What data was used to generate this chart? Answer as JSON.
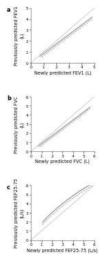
{
  "panels": [
    {
      "label": "a",
      "xlabel": "Newly predicted FEV1 (L)",
      "ylabel": "Previously predicted FEV1\n(L)",
      "xlim": [
        0,
        5
      ],
      "ylim": [
        0,
        5
      ],
      "xticks": [
        0,
        1,
        2,
        3,
        4,
        5
      ],
      "yticks": [
        0,
        1,
        2,
        3,
        4,
        5
      ],
      "curve_type": "linear",
      "lines": [
        {
          "x_start": 0.7,
          "x_end": 4.85,
          "slope": 0.87,
          "intercept": -0.04,
          "style": "solid",
          "color": "#888888",
          "lw": 0.7
        },
        {
          "x_start": 0.85,
          "x_end": 4.85,
          "slope": 0.87,
          "intercept": -0.22,
          "style": "dashed",
          "color": "#888888",
          "lw": 0.55
        },
        {
          "x_start": 0.7,
          "x_end": 4.85,
          "slope": 0.84,
          "intercept": 0.12,
          "style": "dotted",
          "color": "#888888",
          "lw": 0.55
        }
      ]
    },
    {
      "label": "b",
      "xlabel": "Newly predicted FVC (L)",
      "ylabel": "Previously predicted FVC\n(L)",
      "xlim": [
        0,
        6
      ],
      "ylim": [
        0,
        6
      ],
      "xticks": [
        0,
        1,
        2,
        3,
        4,
        5,
        6
      ],
      "yticks": [
        0,
        1,
        2,
        3,
        4,
        5,
        6
      ],
      "curve_type": "linear",
      "lines": [
        {
          "x_start": 0.7,
          "x_end": 5.6,
          "slope": 0.88,
          "intercept": -0.07,
          "style": "solid",
          "color": "#888888",
          "lw": 0.7
        },
        {
          "x_start": 0.9,
          "x_end": 5.6,
          "slope": 0.88,
          "intercept": -0.25,
          "style": "dashed",
          "color": "#888888",
          "lw": 0.55
        },
        {
          "x_start": 0.7,
          "x_end": 5.6,
          "slope": 0.84,
          "intercept": 0.1,
          "style": "dotted",
          "color": "#888888",
          "lw": 0.55
        }
      ]
    },
    {
      "label": "c",
      "xlabel": "Newly predicted FEF25-75 (L/s)",
      "ylabel": "Previously predicted FEF25-75\n(L/s)",
      "xlim": [
        0,
        6
      ],
      "ylim": [
        0,
        6
      ],
      "xticks": [
        0,
        1,
        2,
        3,
        4,
        5,
        6
      ],
      "yticks": [
        0,
        1,
        2,
        3,
        4,
        5,
        6
      ],
      "curve_type": "nonlinear",
      "nl_x_start": 1.1,
      "nl_x_end": 5.8,
      "nl_solid": {
        "a": 2.35,
        "b": 0.6,
        "c": -0.55,
        "style": "solid",
        "color": "#888888",
        "lw": 0.7
      },
      "nl_dashed": {
        "a": 2.35,
        "b": 0.6,
        "c": -0.8,
        "style": "dashed",
        "color": "#888888",
        "lw": 0.55
      },
      "nl_dotted": {
        "a": 2.1,
        "b": 0.65,
        "c": -0.25,
        "style": "dotted",
        "color": "#888888",
        "lw": 0.55
      }
    }
  ],
  "background_color": "#ffffff",
  "identity_color": "#cccccc",
  "identity_lw": 0.7,
  "label_fontsize": 4.8,
  "tick_fontsize": 4.2,
  "panel_label_fontsize": 6
}
